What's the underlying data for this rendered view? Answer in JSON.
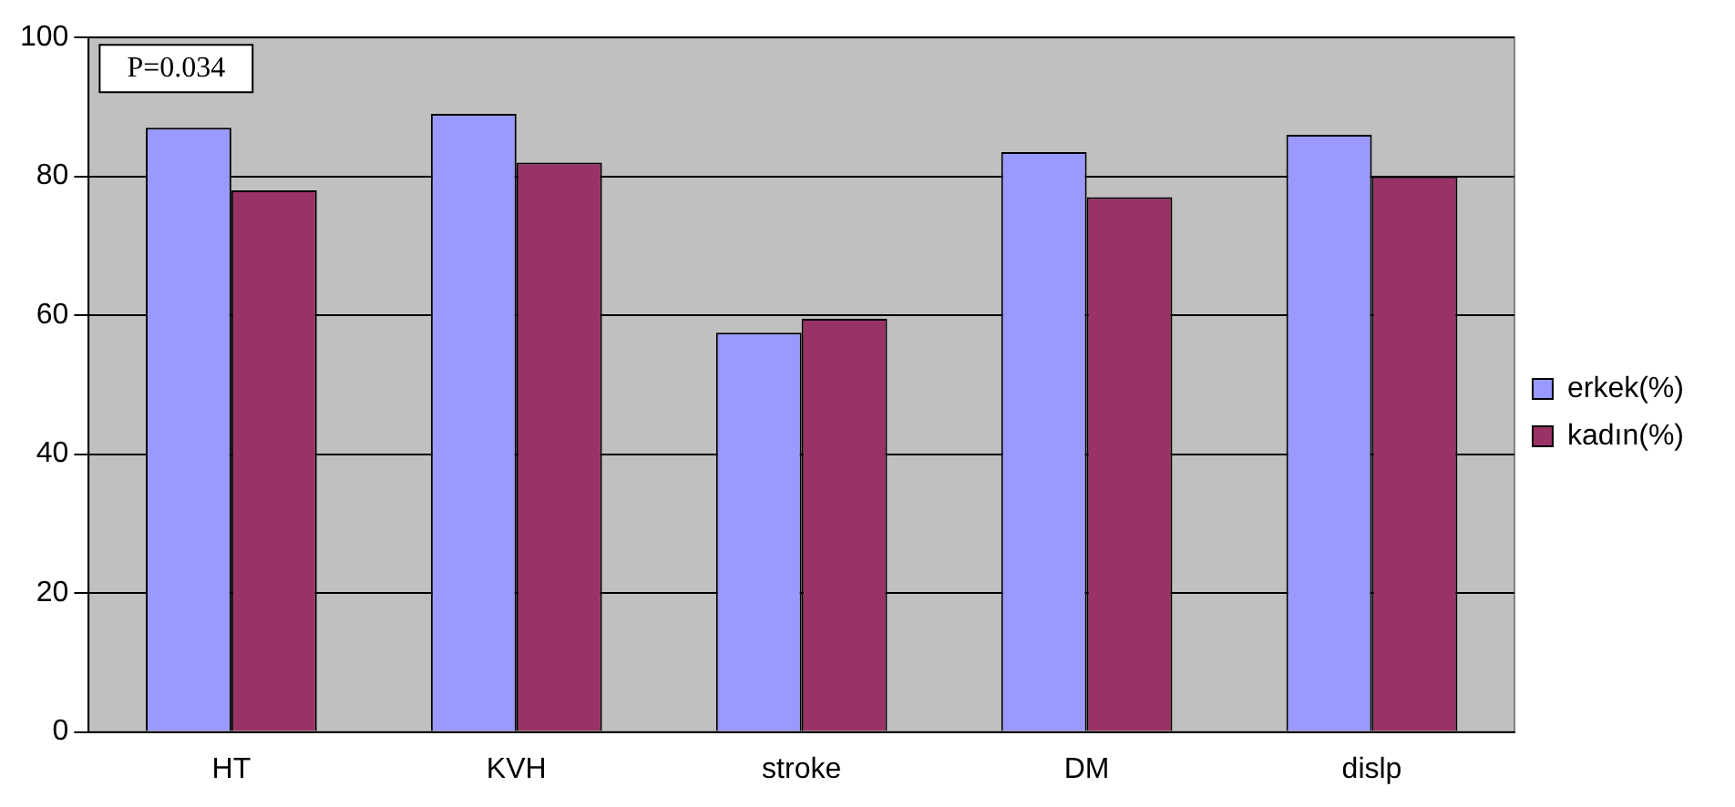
{
  "chart_data": {
    "type": "bar",
    "categories": [
      "HT",
      "KVH",
      "stroke",
      "DM",
      "dislp"
    ],
    "series": [
      {
        "name": "erkek(%)",
        "color": "#9999ff",
        "values": [
          87,
          89,
          57.5,
          83.5,
          86
        ]
      },
      {
        "name": "kadın(%)",
        "color": "#993366",
        "values": [
          78,
          82,
          59.5,
          77,
          80
        ]
      }
    ],
    "ylim": [
      0,
      100
    ],
    "yticks": [
      0,
      20,
      40,
      60,
      80,
      100
    ],
    "grid": "y",
    "legend": "right",
    "annotations": [
      "P=0.034"
    ]
  }
}
